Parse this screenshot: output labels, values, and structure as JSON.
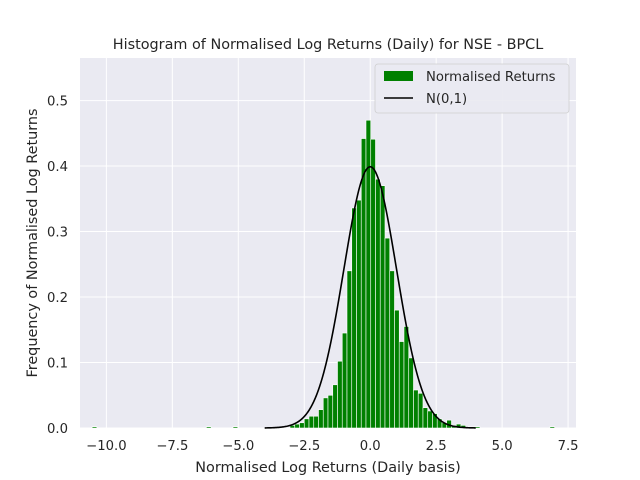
{
  "chart_data": {
    "type": "bar",
    "title": "Histogram of Normalised Log Returns (Daily) for NSE - BPCL",
    "xlabel": "Normalised Log Returns (Daily basis)",
    "ylabel": "Frequency of Normalised Log Returns",
    "xlim": [
      -11.0,
      7.8
    ],
    "ylim": [
      0,
      0.565
    ],
    "xticks": [
      -10.0,
      -7.5,
      -5.0,
      -2.5,
      0.0,
      2.5,
      5.0,
      7.5
    ],
    "xtick_labels": [
      "−10.0",
      "−7.5",
      "−5.0",
      "−2.5",
      "0.0",
      "2.5",
      "5.0",
      "7.5"
    ],
    "yticks": [
      0.0,
      0.1,
      0.2,
      0.3,
      0.4,
      0.5
    ],
    "ytick_labels": [
      "0.0",
      "0.1",
      "0.2",
      "0.3",
      "0.4",
      "0.5"
    ],
    "grid": true,
    "legend_position": "top-right",
    "colors": {
      "background": "#eaeaf2",
      "grid": "#ffffff",
      "bars": "#008000",
      "line": "#000000"
    },
    "series": [
      {
        "name": "Normalised Returns",
        "kind": "histogram",
        "bin_width": 0.18,
        "bin_centers": [
          -10.45,
          -6.12,
          -5.11,
          -2.95,
          -2.77,
          -2.59,
          -2.41,
          -2.23,
          -2.05,
          -1.87,
          -1.69,
          -1.51,
          -1.33,
          -1.15,
          -0.97,
          -0.79,
          -0.61,
          -0.43,
          -0.25,
          -0.07,
          0.11,
          0.29,
          0.47,
          0.65,
          0.83,
          1.01,
          1.19,
          1.37,
          1.55,
          1.73,
          1.91,
          2.09,
          2.27,
          2.45,
          2.63,
          2.81,
          2.99,
          3.17,
          3.35,
          3.53,
          3.71,
          3.89,
          4.07,
          6.9
        ],
        "values": [
          0.002,
          0.002,
          0.002,
          0.004,
          0.006,
          0.008,
          0.014,
          0.018,
          0.018,
          0.028,
          0.046,
          0.05,
          0.066,
          0.102,
          0.145,
          0.24,
          0.336,
          0.348,
          0.442,
          0.47,
          0.441,
          0.38,
          0.37,
          0.29,
          0.24,
          0.18,
          0.132,
          0.155,
          0.107,
          0.058,
          0.053,
          0.031,
          0.026,
          0.022,
          0.014,
          0.008,
          0.012,
          0.004,
          0.006,
          0.004,
          0.002,
          0.002,
          0.002,
          0.002
        ]
      },
      {
        "name": "N(0,1)",
        "kind": "line",
        "function": "standard-normal-pdf",
        "x_range": [
          -4,
          4
        ]
      }
    ]
  }
}
